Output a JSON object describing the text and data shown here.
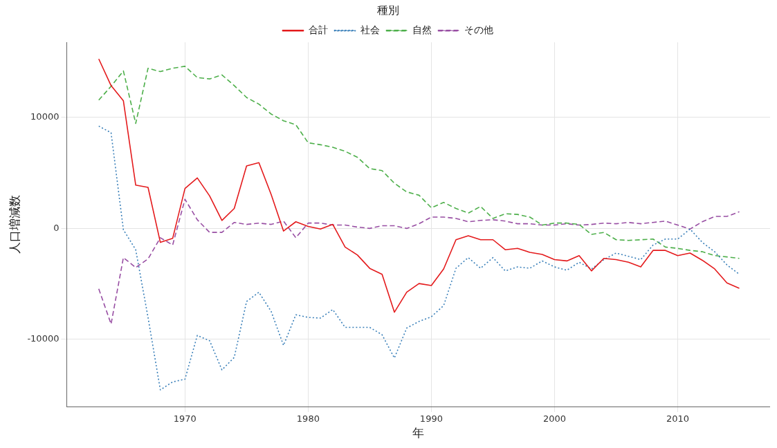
{
  "chart_data": {
    "type": "line",
    "xlabel": "年",
    "ylabel": "人口増減数",
    "legend_title": "種別",
    "legend": "top",
    "grid": true,
    "x": [
      1963,
      1964,
      1965,
      1966,
      1967,
      1968,
      1969,
      1970,
      1971,
      1972,
      1973,
      1974,
      1975,
      1976,
      1977,
      1978,
      1979,
      1980,
      1981,
      1982,
      1983,
      1984,
      1985,
      1986,
      1987,
      1988,
      1989,
      1990,
      1991,
      1992,
      1993,
      1994,
      1995,
      1996,
      1997,
      1998,
      1999,
      2000,
      2001,
      2002,
      2003,
      2004,
      2005,
      2006,
      2007,
      2008,
      2009,
      2010,
      2011,
      2012,
      2013,
      2014,
      2015
    ],
    "xlim": [
      1960.4,
      2017.5
    ],
    "xticks": [
      1970,
      1980,
      1990,
      2000,
      2010
    ],
    "ylim": [
      -16050,
      16770
    ],
    "yticks": [
      -10000,
      0,
      10000
    ],
    "series": [
      {
        "name": "合計",
        "color": "#e41a1c",
        "line_style": "solid",
        "values": [
          15270,
          12870,
          11500,
          3900,
          3700,
          -1260,
          -900,
          3600,
          4550,
          2930,
          720,
          1800,
          5630,
          5930,
          3050,
          -240,
          600,
          180,
          -60,
          360,
          -1680,
          -2400,
          -3600,
          -4130,
          -7550,
          -5750,
          -4970,
          -5150,
          -3650,
          -1020,
          -660,
          -1020,
          -1020,
          -1920,
          -1800,
          -2160,
          -2340,
          -2810,
          -2930,
          -2450,
          -3830,
          -2700,
          -2810,
          -3050,
          -3470,
          -1980,
          -1980,
          -2450,
          -2220,
          -2870,
          -3650,
          -4910,
          -5390
        ]
      },
      {
        "name": "社会",
        "color": "#377eb8",
        "line_style": "dotted",
        "values": [
          9220,
          8620,
          -120,
          -1920,
          -8020,
          -14550,
          -13830,
          -13590,
          -9640,
          -10120,
          -12750,
          -11620,
          -6590,
          -5750,
          -7490,
          -10540,
          -7780,
          -8020,
          -8080,
          -7310,
          -8920,
          -8920,
          -8920,
          -9580,
          -11680,
          -8980,
          -8380,
          -7960,
          -6950,
          -3590,
          -2630,
          -3590,
          -2630,
          -3830,
          -3470,
          -3590,
          -2930,
          -3470,
          -3770,
          -3050,
          -3650,
          -2810,
          -2220,
          -2510,
          -2810,
          -1500,
          -960,
          -960,
          -60,
          -1260,
          -2100,
          -3290,
          -4130
        ]
      },
      {
        "name": "自然",
        "color": "#4daf4a",
        "line_style": "dashed",
        "values": [
          11560,
          12810,
          14190,
          9460,
          14430,
          14130,
          14430,
          14610,
          13590,
          13470,
          13830,
          12870,
          11800,
          11200,
          10300,
          9700,
          9340,
          7720,
          7540,
          7310,
          6950,
          6410,
          5390,
          5210,
          4070,
          3290,
          2990,
          1860,
          2340,
          1800,
          1380,
          1980,
          900,
          1320,
          1260,
          1020,
          300,
          480,
          480,
          360,
          -540,
          -360,
          -1020,
          -1080,
          -1020,
          -960,
          -1680,
          -1800,
          -1980,
          -2100,
          -2450,
          -2570,
          -2700
        ]
      },
      {
        "name": "その他",
        "color": "#984ea3",
        "line_style": "dashed",
        "values": [
          -5450,
          -8620,
          -2630,
          -3530,
          -2750,
          -840,
          -1500,
          2630,
          780,
          -360,
          -360,
          540,
          360,
          480,
          360,
          660,
          -840,
          480,
          480,
          300,
          300,
          120,
          0,
          240,
          240,
          0,
          420,
          1020,
          1020,
          900,
          600,
          720,
          780,
          660,
          420,
          420,
          300,
          300,
          420,
          300,
          360,
          480,
          420,
          540,
          420,
          540,
          660,
          300,
          -60,
          600,
          1080,
          1080,
          1500
        ]
      }
    ]
  }
}
